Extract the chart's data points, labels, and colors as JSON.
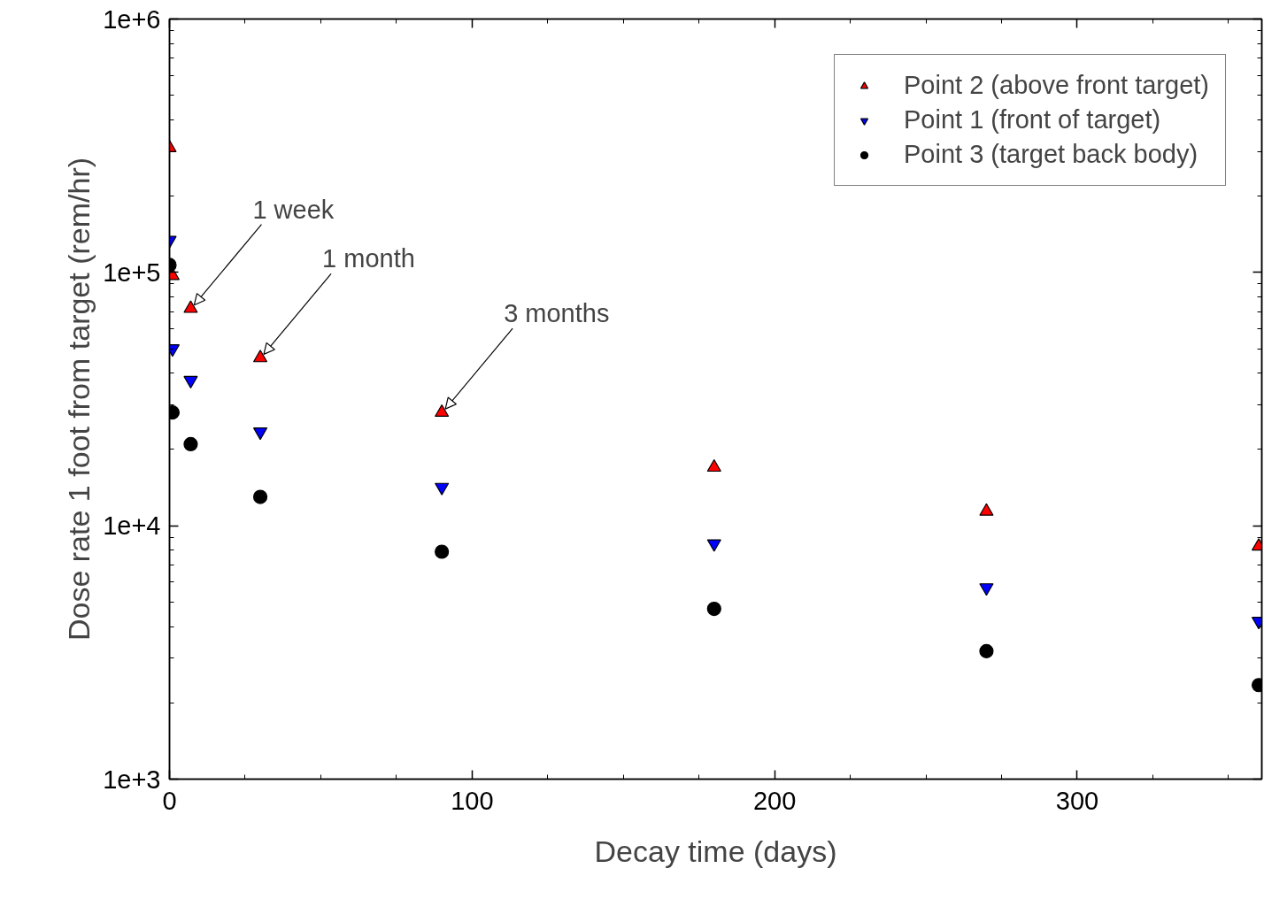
{
  "chart_data": {
    "type": "scatter",
    "xlabel": "Decay time (days)",
    "ylabel": "Dose rate 1 foot from target (rem/hr)",
    "x": [
      0,
      1,
      7,
      30,
      90,
      180,
      270,
      360
    ],
    "series": [
      {
        "name": "Point 2 (above front target)",
        "color": "#ff0000",
        "marker": "triangle",
        "values": [
          310000,
          97000,
          72000,
          46000,
          28000,
          17000,
          11400,
          8300
        ]
      },
      {
        "name": "Point 1 (front of target)",
        "color": "#0000ff",
        "values": [
          134000,
          50000,
          37500,
          23500,
          14200,
          8500,
          5700,
          4200
        ]
      },
      {
        "name": "Point 3 (target back body)",
        "color": "#000000",
        "marker": "circle",
        "values": [
          107000,
          28000,
          21000,
          13000,
          7900,
          4700,
          3200,
          2350
        ]
      }
    ],
    "annotations": [
      {
        "text": "1 week",
        "x": 7,
        "y": 72000
      },
      {
        "text": "1 month",
        "x": 30,
        "y": 46000
      },
      {
        "text": "3 months",
        "x": 90,
        "y": 28000
      }
    ],
    "log": "y",
    "xlim": [
      0,
      361
    ],
    "ylim": [
      1000,
      1000000
    ],
    "xticks": [
      0,
      100,
      200,
      300
    ],
    "yticks": [
      {
        "value": 1000,
        "label": "1e+3"
      },
      {
        "value": 10000,
        "label": "1e+4"
      },
      {
        "value": 100000,
        "label": "1e+5"
      },
      {
        "value": 1000000,
        "label": "1e+6"
      }
    ],
    "grid": false,
    "legend": "top right"
  }
}
